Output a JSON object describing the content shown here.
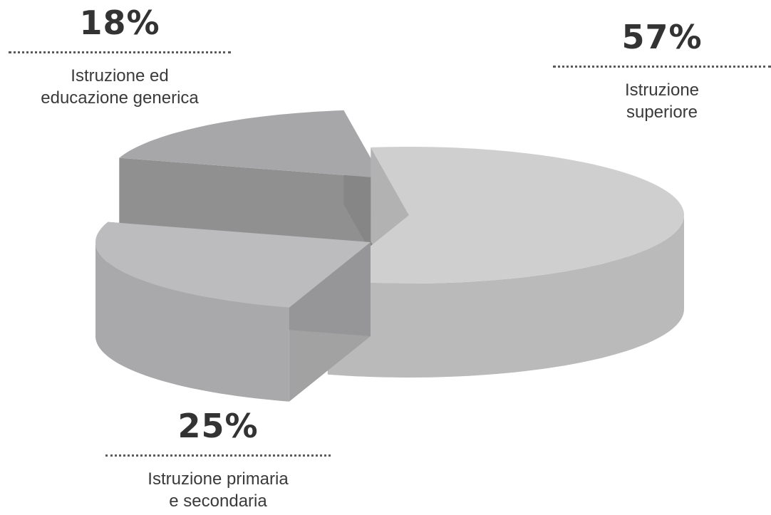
{
  "chart_data": {
    "type": "pie",
    "style": "3d-exploded",
    "slices": [
      {
        "label": "Istruzione superiore",
        "value": 57,
        "value_text": "57%",
        "color": "#cfcfd0"
      },
      {
        "label": "Istruzione primaria e secondaria",
        "value": 25,
        "value_text": "25%",
        "color": "#bcbcbe"
      },
      {
        "label": "Istruzione ed educazione generica",
        "value": 18,
        "value_text": "18%",
        "color": "#a7a7a9"
      }
    ]
  },
  "callouts": {
    "generica": {
      "pct": "18%",
      "line1": "Istruzione ed",
      "line2": "educazione generica"
    },
    "superiore": {
      "pct": "57%",
      "line1": "Istruzione",
      "line2": "superiore"
    },
    "primaria": {
      "pct": "25%",
      "line1": "Istruzione primaria",
      "line2": "e secondaria"
    }
  }
}
